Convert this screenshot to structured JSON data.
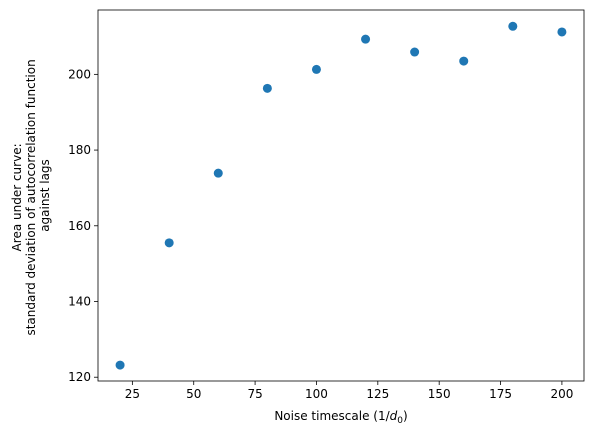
{
  "chart_data": {
    "type": "scatter",
    "title": "",
    "xlabel": {
      "prefix": "Noise timescale (1/",
      "symbol": "d",
      "subscript": "0",
      "suffix": ")"
    },
    "ylabel": [
      "Area under curve:",
      "standard deviation of autocorrelation function",
      "against lags"
    ],
    "xlim": [
      11.0,
      209.0
    ],
    "ylim": [
      119.0,
      217.0
    ],
    "xticks": [
      25,
      50,
      75,
      100,
      125,
      150,
      175,
      200
    ],
    "yticks": [
      120,
      140,
      160,
      180,
      200
    ],
    "grid": false,
    "marker_color": "#1f77b4",
    "points": {
      "x": [
        20,
        40,
        60,
        80,
        100,
        120,
        140,
        160,
        180,
        200
      ],
      "y": [
        123.2,
        155.5,
        173.9,
        196.3,
        201.3,
        209.3,
        205.9,
        203.5,
        212.7,
        211.2
      ]
    }
  }
}
